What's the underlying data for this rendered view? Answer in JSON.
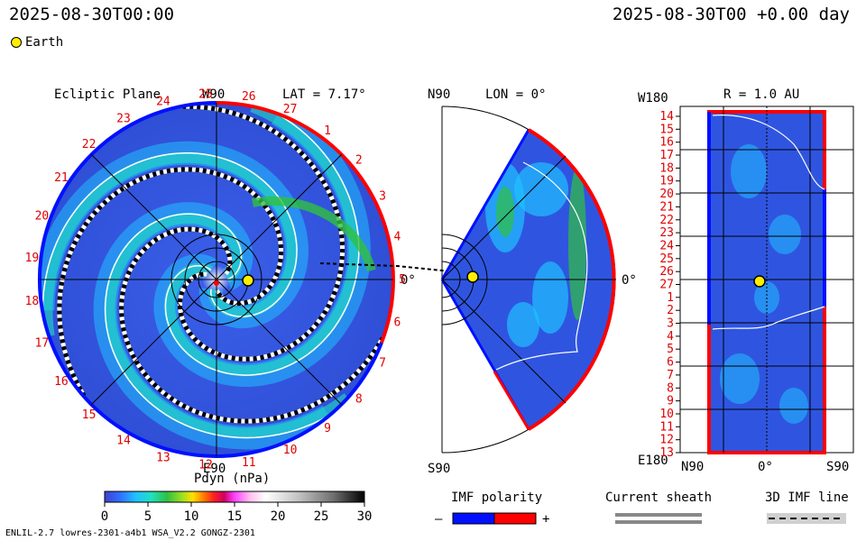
{
  "header": {
    "timestamp_left": "2025-08-30T00:00",
    "timestamp_right": "2025-08-30T00 +0.00 day"
  },
  "legend": {
    "earth_label": "Earth"
  },
  "panels": {
    "ecliptic": {
      "title": "Ecliptic Plane",
      "top_label": "W90",
      "bottom_label": "E90",
      "lat_label": "LAT = 7.17°",
      "zero_label": "0°",
      "carrington_numbers": [
        "17",
        "18",
        "19",
        "20",
        "21",
        "22",
        "23",
        "24",
        "25",
        "26",
        "27",
        "1",
        "2",
        "3",
        "4",
        "5",
        "6",
        "7",
        "8",
        "9",
        "10",
        "11",
        "12",
        "13",
        "14",
        "15",
        "16"
      ]
    },
    "meridional": {
      "top_label": "N90",
      "lon_label": "LON = 0°",
      "bottom_label": "S90",
      "zero_label": "0°"
    },
    "radial": {
      "top_left_label": "W180",
      "r_label": "R = 1.0 AU",
      "bottom_left_label": "E180",
      "x_labels": [
        "N90",
        "0°",
        "S90"
      ],
      "y_numbers": [
        "14",
        "15",
        "16",
        "17",
        "18",
        "19",
        "20",
        "21",
        "22",
        "23",
        "24",
        "25",
        "26",
        "27",
        "1",
        "2",
        "3",
        "4",
        "5",
        "6",
        "7",
        "8",
        "9",
        "10",
        "11",
        "12",
        "13"
      ]
    }
  },
  "colorbar": {
    "title": "Pdyn (nPa)",
    "ticks": [
      "0",
      "5",
      "10",
      "15",
      "20",
      "25",
      "30"
    ],
    "range": [
      0,
      30
    ]
  },
  "imf_legend": {
    "title": "IMF polarity",
    "minus": "–",
    "plus": "+",
    "minus_color": "#0010ff",
    "plus_color": "#ff0000"
  },
  "sheath_legend": {
    "title": "Current sheath"
  },
  "imf_line_legend": {
    "title": "3D IMF line"
  },
  "footer": {
    "model_info": "ENLIL-2.7 lowres-2301-a4b1 WSA_V2.2 GONGZ-2301"
  },
  "chart_data": [
    {
      "type": "heatmap",
      "title": "Ecliptic Plane",
      "quantity": "Pdyn (nPa)",
      "value_range": [
        0,
        30
      ],
      "earth_position": "0°"
    },
    {
      "type": "heatmap",
      "title": "LON = 0°",
      "quantity": "Pdyn (nPa)",
      "value_range": [
        0,
        30
      ]
    },
    {
      "type": "heatmap",
      "title": "R = 1.0 AU",
      "quantity": "Pdyn (nPa)",
      "value_range": [
        0,
        30
      ]
    }
  ]
}
